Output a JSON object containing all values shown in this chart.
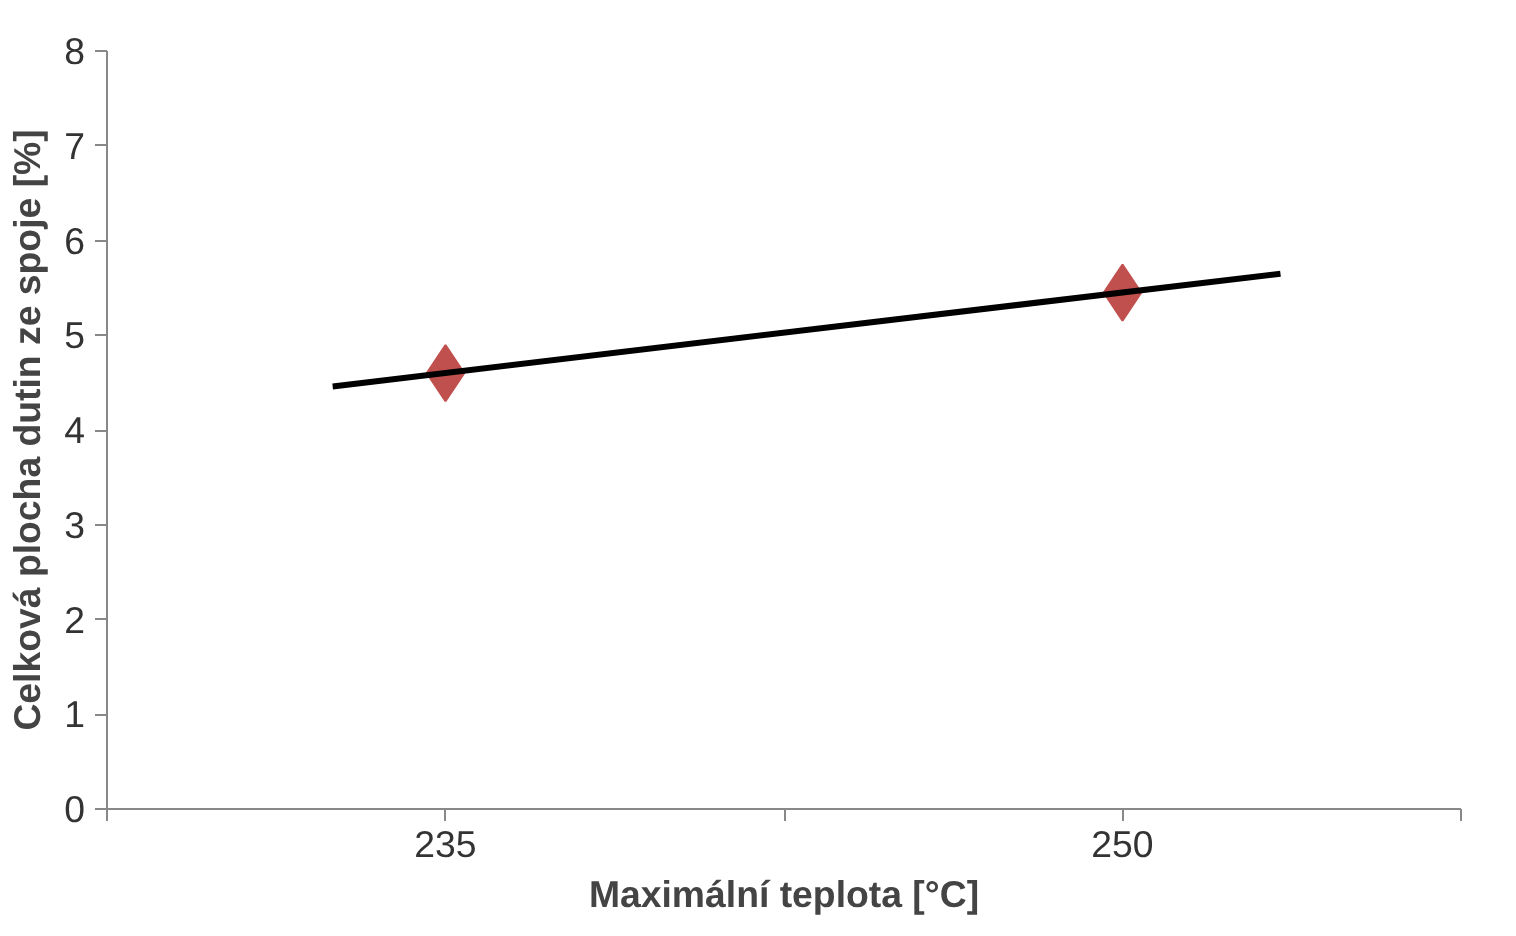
{
  "chart_data": {
    "type": "scatter",
    "xlabel": "Maximální teplota [°C]",
    "ylabel": "Celková plocha dutin ze spoje [%]",
    "marker": "diamond",
    "grid": false,
    "series": [
      {
        "color": "#c0504d",
        "x": [
          235,
          250
        ],
        "values": [
          4.6,
          5.45
        ]
      },
      {
        "type": "line",
        "color": "#000000",
        "x": [
          232.5,
          253.5
        ],
        "values": [
          4.46,
          5.65
        ],
        "marker": "none"
      }
    ],
    "xlim": [
      227.5,
      257.5
    ],
    "xticks": [
      {
        "value": 227.5,
        "label": null
      },
      235,
      {
        "value": 242.5,
        "label": null
      },
      250,
      {
        "value": 257.5,
        "label": null
      }
    ],
    "ylim": [
      0,
      8
    ],
    "yticks": [
      0,
      1,
      2,
      3,
      4,
      5,
      6,
      7,
      8
    ]
  }
}
